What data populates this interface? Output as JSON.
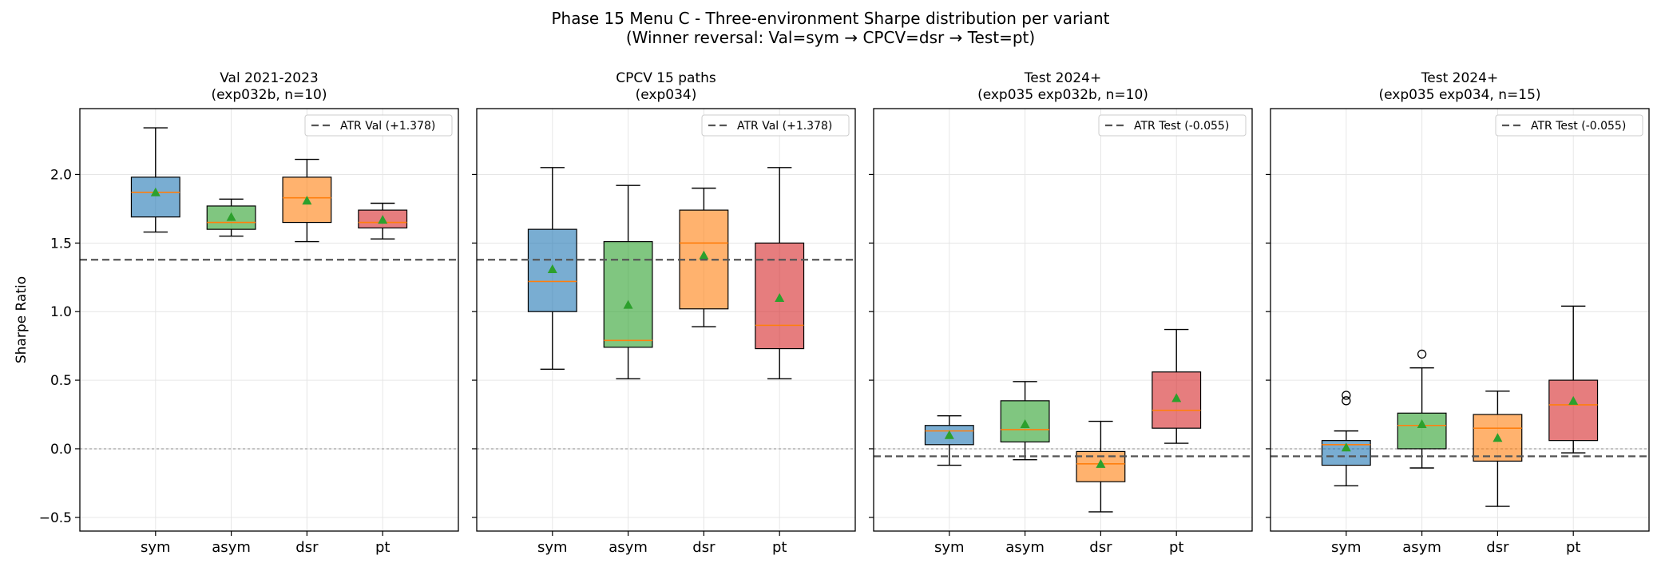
{
  "figure": {
    "title_line1": "Phase 15 Menu C - Three-environment Sharpe distribution per variant",
    "title_line2": "(Winner reversal: Val=sym → CPCV=dsr → Test=pt)"
  },
  "colors": {
    "sym": "#1f77b4",
    "asym": "#2ca02c",
    "dsr": "#ff7f0e",
    "pt": "#d62728",
    "median": "#ff7f0e",
    "mean_marker": "#2ca02c",
    "ref_line": "#555555",
    "zero_line": "#b0b0b0"
  },
  "chart_data": [
    {
      "type": "box",
      "title_line1": "Val 2021-2023",
      "title_line2": "(exp032b, n=10)",
      "ylabel": "Sharpe Ratio",
      "categories": [
        "sym",
        "asym",
        "dsr",
        "pt"
      ],
      "ylim": [
        -0.6,
        2.48
      ],
      "yticks": [
        -0.5,
        0.0,
        0.5,
        1.0,
        1.5,
        2.0
      ],
      "ytick_labels": [
        "−0.5",
        "0.0",
        "0.5",
        "1.0",
        "1.5",
        "2.0"
      ],
      "grid": true,
      "legend_position": "top-right",
      "ref_line": {
        "label": "ATR Val (+1.378)",
        "value": 1.378
      },
      "boxes": [
        {
          "whisker_low": 1.58,
          "q1": 1.69,
          "median": 1.87,
          "q3": 1.98,
          "whisker_high": 2.34,
          "mean": 1.87,
          "outliers": []
        },
        {
          "whisker_low": 1.55,
          "q1": 1.6,
          "median": 1.65,
          "q3": 1.77,
          "whisker_high": 1.82,
          "mean": 1.69,
          "outliers": []
        },
        {
          "whisker_low": 1.51,
          "q1": 1.65,
          "median": 1.83,
          "q3": 1.98,
          "whisker_high": 2.11,
          "mean": 1.81,
          "outliers": []
        },
        {
          "whisker_low": 1.53,
          "q1": 1.61,
          "median": 1.65,
          "q3": 1.74,
          "whisker_high": 1.79,
          "mean": 1.67,
          "outliers": []
        }
      ]
    },
    {
      "type": "box",
      "title_line1": "CPCV 15 paths",
      "title_line2": "(exp034)",
      "ylabel": "",
      "categories": [
        "sym",
        "asym",
        "dsr",
        "pt"
      ],
      "ylim": [
        -0.6,
        2.48
      ],
      "yticks": [
        -0.5,
        0.0,
        0.5,
        1.0,
        1.5,
        2.0
      ],
      "ytick_labels": [
        "",
        "",
        "",
        "",
        "",
        ""
      ],
      "grid": true,
      "legend_position": "top-right",
      "ref_line": {
        "label": "ATR Val (+1.378)",
        "value": 1.378
      },
      "boxes": [
        {
          "whisker_low": 0.58,
          "q1": 1.0,
          "median": 1.22,
          "q3": 1.6,
          "whisker_high": 2.05,
          "mean": 1.31,
          "outliers": []
        },
        {
          "whisker_low": 0.51,
          "q1": 0.74,
          "median": 0.79,
          "q3": 1.51,
          "whisker_high": 1.92,
          "mean": 1.05,
          "outliers": []
        },
        {
          "whisker_low": 0.89,
          "q1": 1.02,
          "median": 1.5,
          "q3": 1.74,
          "whisker_high": 1.9,
          "mean": 1.41,
          "outliers": []
        },
        {
          "whisker_low": 0.51,
          "q1": 0.73,
          "median": 0.9,
          "q3": 1.5,
          "whisker_high": 2.05,
          "mean": 1.1,
          "outliers": []
        }
      ]
    },
    {
      "type": "box",
      "title_line1": "Test 2024+",
      "title_line2": "(exp035 exp032b, n=10)",
      "ylabel": "",
      "categories": [
        "sym",
        "asym",
        "dsr",
        "pt"
      ],
      "ylim": [
        -0.6,
        2.48
      ],
      "yticks": [
        -0.5,
        0.0,
        0.5,
        1.0,
        1.5,
        2.0
      ],
      "ytick_labels": [
        "",
        "",
        "",
        "",
        "",
        ""
      ],
      "grid": true,
      "legend_position": "top-right",
      "ref_line": {
        "label": "ATR Test (-0.055)",
        "value": -0.055
      },
      "boxes": [
        {
          "whisker_low": -0.12,
          "q1": 0.03,
          "median": 0.13,
          "q3": 0.17,
          "whisker_high": 0.24,
          "mean": 0.1,
          "outliers": []
        },
        {
          "whisker_low": -0.08,
          "q1": 0.05,
          "median": 0.14,
          "q3": 0.35,
          "whisker_high": 0.49,
          "mean": 0.18,
          "outliers": []
        },
        {
          "whisker_low": -0.46,
          "q1": -0.24,
          "median": -0.11,
          "q3": -0.02,
          "whisker_high": 0.2,
          "mean": -0.11,
          "outliers": []
        },
        {
          "whisker_low": 0.04,
          "q1": 0.15,
          "median": 0.28,
          "q3": 0.56,
          "whisker_high": 0.87,
          "mean": 0.37,
          "outliers": []
        }
      ]
    },
    {
      "type": "box",
      "title_line1": "Test 2024+",
      "title_line2": "(exp035 exp034, n=15)",
      "ylabel": "",
      "categories": [
        "sym",
        "asym",
        "dsr",
        "pt"
      ],
      "ylim": [
        -0.6,
        2.48
      ],
      "yticks": [
        -0.5,
        0.0,
        0.5,
        1.0,
        1.5,
        2.0
      ],
      "ytick_labels": [
        "",
        "",
        "",
        "",
        "",
        ""
      ],
      "grid": true,
      "legend_position": "top-right",
      "ref_line": {
        "label": "ATR Test (-0.055)",
        "value": -0.055
      },
      "boxes": [
        {
          "whisker_low": -0.27,
          "q1": -0.12,
          "median": 0.03,
          "q3": 0.06,
          "whisker_high": 0.13,
          "mean": 0.01,
          "outliers": [
            0.35,
            0.39
          ]
        },
        {
          "whisker_low": -0.14,
          "q1": 0.0,
          "median": 0.17,
          "q3": 0.26,
          "whisker_high": 0.59,
          "mean": 0.18,
          "outliers": [
            0.69
          ]
        },
        {
          "whisker_low": -0.42,
          "q1": -0.09,
          "median": 0.15,
          "q3": 0.25,
          "whisker_high": 0.42,
          "mean": 0.08,
          "outliers": []
        },
        {
          "whisker_low": -0.03,
          "q1": 0.06,
          "median": 0.32,
          "q3": 0.5,
          "whisker_high": 1.04,
          "mean": 0.35,
          "outliers": []
        }
      ]
    }
  ]
}
